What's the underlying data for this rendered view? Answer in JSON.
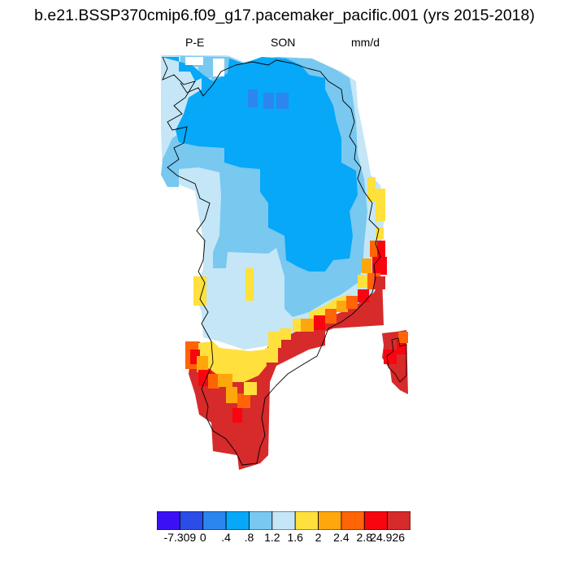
{
  "title": "b.e21.BSSP370cmip6.f09_g17.pacemaker_pacific.001 (yrs 2015-2018)",
  "subtitle": {
    "left": "P-E",
    "center": "SON",
    "right": "mm/d"
  },
  "colorbar": {
    "colors": [
      "#3b10f5",
      "#2a4ce8",
      "#2b86ef",
      "#06a8f7",
      "#78c8f0",
      "#c4e6f7",
      "#ffe03c",
      "#fda70c",
      "#ff6406",
      "#f80510",
      "#d62a2b"
    ],
    "labels": [
      "-7.309",
      "0",
      ".4",
      ".8",
      "1.2",
      "1.6",
      "2",
      "2.4",
      "2.8",
      "24.926"
    ]
  },
  "map_regions": [
    "greenland",
    "iceland"
  ]
}
